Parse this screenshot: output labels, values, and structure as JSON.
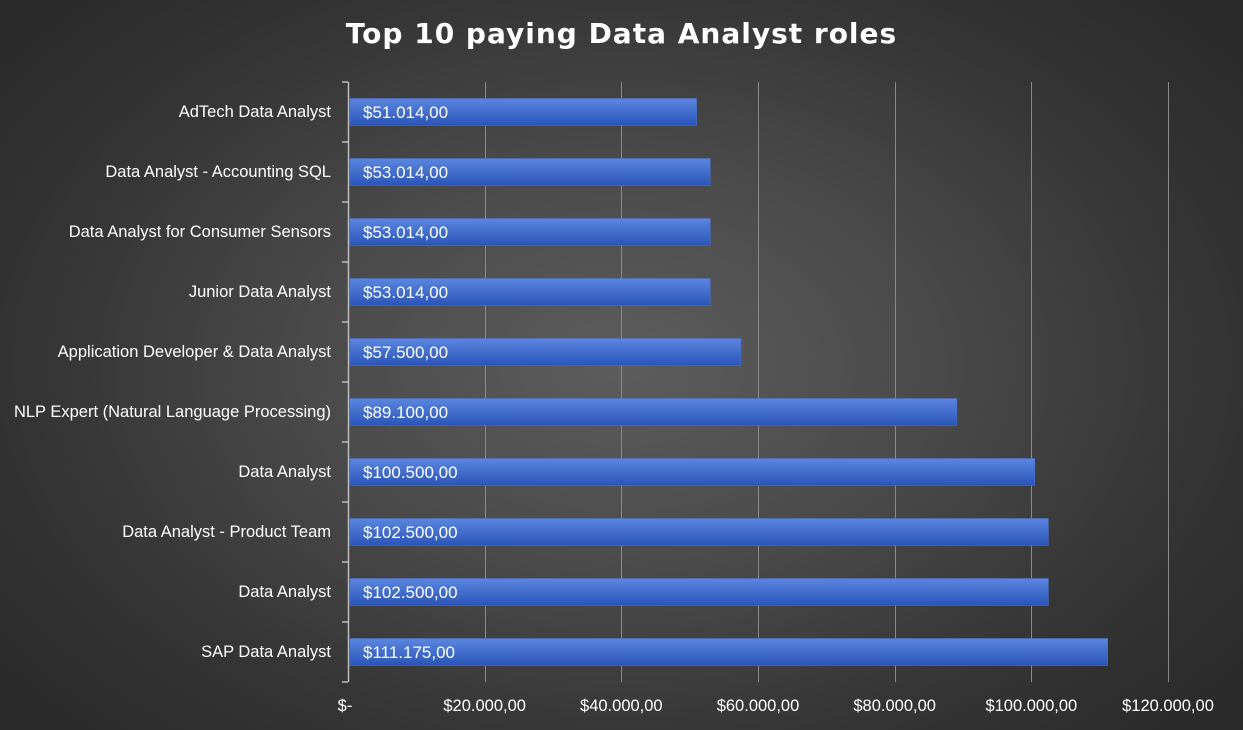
{
  "chart_data": {
    "type": "bar",
    "orientation": "horizontal",
    "title": "Top 10 paying Data Analyst roles",
    "categories": [
      "AdTech Data Analyst",
      "Data Analyst - Accounting SQL",
      "Data Analyst for Consumer Sensors",
      "Junior Data Analyst",
      "Application Developer & Data Analyst",
      "NLP Expert (Natural Language Processing)",
      "Data Analyst",
      "Data Analyst - Product Team",
      "Data Analyst",
      "SAP Data Analyst"
    ],
    "values": [
      51014,
      53014,
      53014,
      53014,
      57500,
      89100,
      100500,
      102500,
      102500,
      111175
    ],
    "data_labels": [
      "$51.014,00",
      "$53.014,00",
      "$53.014,00",
      "$53.014,00",
      "$57.500,00",
      "$89.100,00",
      "$100.500,00",
      "$102.500,00",
      "$102.500,00",
      "$111.175,00"
    ],
    "x_ticks": [
      0,
      20000,
      40000,
      60000,
      80000,
      100000,
      120000
    ],
    "x_tick_labels": [
      "$-",
      "$20.000,00",
      "$40.000,00",
      "$60.000,00",
      "$80.000,00",
      "$100.000,00",
      "$120.000,00"
    ],
    "xlim": [
      0,
      120000
    ],
    "xlabel": "",
    "ylabel": "",
    "grid": true,
    "legend": "none",
    "colors": {
      "bar_top": "#5b86e0",
      "bar_bottom": "#2a55b8",
      "grid": "#8a8a8a",
      "axis": "#bdbdbd",
      "text": "#ffffff"
    }
  }
}
